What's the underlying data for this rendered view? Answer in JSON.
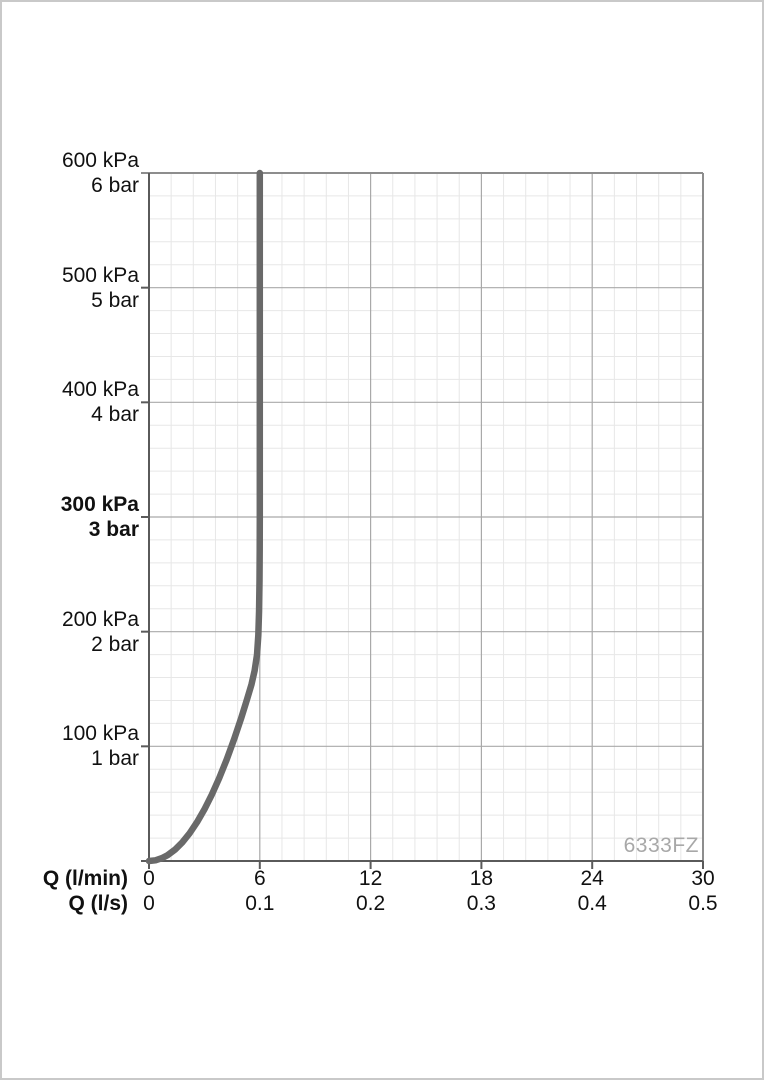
{
  "page": {
    "background": "#ffffff",
    "border_color": "#c9c9c9"
  },
  "chart_data": {
    "type": "line",
    "title": "",
    "watermark": "6333FZ",
    "legend": false,
    "grid": true,
    "colors": {
      "axis": "#5a5a5a",
      "frame": "#8d8d8d",
      "grid_major": "#a9a9a9",
      "grid_minor": "#e7e7e7",
      "curve": "#696969",
      "watermark": "#a8a8a8",
      "text": "#111111"
    },
    "x_axis": {
      "label_lmin": "Q (l/min)",
      "label_ls": "Q (l/s)",
      "range_lmin": [
        0,
        30
      ],
      "range_ls": [
        0,
        0.5
      ],
      "tick_values_lmin": [
        0,
        6,
        12,
        18,
        24,
        30
      ],
      "tick_labels_lmin": [
        "0",
        "6",
        "12",
        "18",
        "24",
        "30"
      ],
      "tick_labels_ls": [
        "0",
        "0.1",
        "0.2",
        "0.3",
        "0.4",
        "0.5"
      ],
      "minor_divisions_per_major": 5
    },
    "y_axis": {
      "unit_primary": "kPa",
      "unit_secondary": "bar",
      "range_kpa": [
        0,
        600
      ],
      "major_step_kpa": 100,
      "minor_step_kpa": 20,
      "ticks": [
        {
          "kpa_label": "600 kPa",
          "bar_label": "6 bar",
          "value_kpa": 600,
          "bold": false
        },
        {
          "kpa_label": "500 kPa",
          "bar_label": "5 bar",
          "value_kpa": 500,
          "bold": false
        },
        {
          "kpa_label": "400 kPa",
          "bar_label": "4 bar",
          "value_kpa": 400,
          "bold": false
        },
        {
          "kpa_label": "300 kPa",
          "bar_label": "3 bar",
          "value_kpa": 300,
          "bold": true
        },
        {
          "kpa_label": "200 kPa",
          "bar_label": "2 bar",
          "value_kpa": 200,
          "bold": false
        },
        {
          "kpa_label": "100 kPa",
          "bar_label": "1 bar",
          "value_kpa": 100,
          "bold": false
        }
      ]
    },
    "series": [
      {
        "name": "flow-rate-curve",
        "color": "#696969",
        "stroke_width": 6.5,
        "points_q_lmin_p_kpa": [
          [
            0,
            0
          ],
          [
            0.35,
            0.6
          ],
          [
            0.7,
            2.5
          ],
          [
            1,
            5
          ],
          [
            1.4,
            9.8
          ],
          [
            1.8,
            16.2
          ],
          [
            2.2,
            24.2
          ],
          [
            2.6,
            33.8
          ],
          [
            3,
            45
          ],
          [
            3.4,
            57.8
          ],
          [
            3.8,
            72.2
          ],
          [
            4.2,
            88.2
          ],
          [
            4.6,
            105.8
          ],
          [
            5,
            125
          ],
          [
            5.3,
            140.5
          ],
          [
            5.55,
            154
          ],
          [
            5.72,
            166
          ],
          [
            5.85,
            180
          ],
          [
            5.92,
            197
          ],
          [
            5.96,
            218
          ],
          [
            5.985,
            245
          ],
          [
            5.995,
            272
          ],
          [
            6,
            300
          ],
          [
            6,
            600
          ]
        ]
      }
    ]
  }
}
